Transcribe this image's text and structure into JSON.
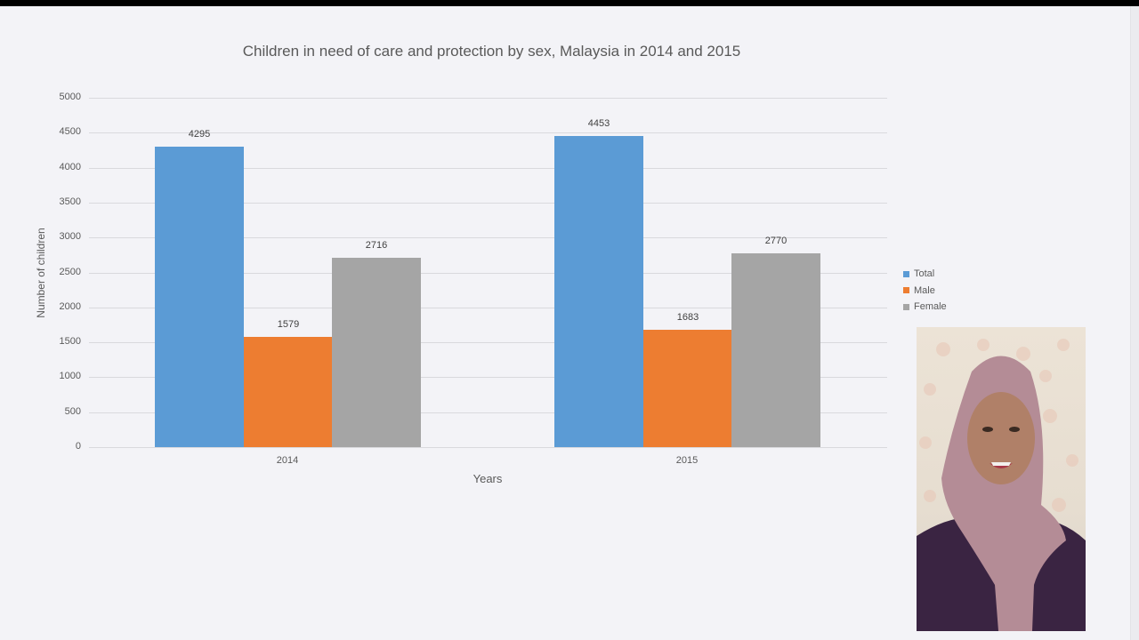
{
  "chart_data": {
    "type": "bar",
    "title": "Children in need of care and protection by sex, Malaysia in  2014 and 2015",
    "xlabel": "Years",
    "ylabel": "Number of children",
    "ylim": [
      0,
      5000
    ],
    "yticks": [
      "0",
      "500",
      "1000",
      "1500",
      "2000",
      "2500",
      "3000",
      "3500",
      "4000",
      "4500",
      "5000"
    ],
    "grid": true,
    "legend_position": "right",
    "categories": [
      "2014",
      "2015"
    ],
    "series": [
      {
        "name": "Total",
        "color": "#5b9bd5",
        "values": [
          4295,
          4453
        ]
      },
      {
        "name": "Male",
        "color": "#ed7d31",
        "values": [
          1579,
          1683
        ]
      },
      {
        "name": "Female",
        "color": "#a5a5a5",
        "values": [
          2716,
          2770
        ]
      }
    ]
  },
  "webcam": {
    "description": "presenter video overlay"
  }
}
